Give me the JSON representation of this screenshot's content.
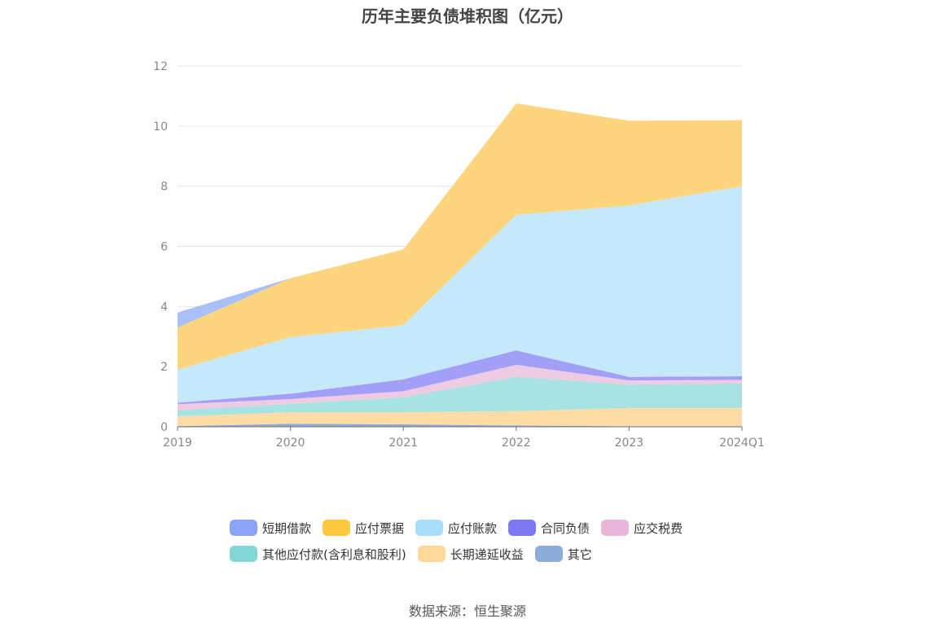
{
  "chart_data": {
    "type": "area",
    "stacked": true,
    "title": "历年主要负债堆积图（亿元）",
    "categories": [
      "2019",
      "2020",
      "2021",
      "2022",
      "2023",
      "2024Q1"
    ],
    "ylim": [
      0,
      12
    ],
    "yticks": [
      "0",
      "2",
      "4",
      "6",
      "8",
      "10",
      "12"
    ],
    "grid": true,
    "legend_position": "bottom",
    "series": [
      {
        "name": "其它",
        "color": "#8eacd8",
        "values": [
          0.02,
          0.1,
          0.08,
          0.04,
          0.02,
          0.02
        ]
      },
      {
        "name": "长期递延收益",
        "color": "#ffdca6",
        "values": [
          0.33,
          0.38,
          0.4,
          0.48,
          0.6,
          0.6
        ]
      },
      {
        "name": "其他应付款(含利息和股利)",
        "color": "#a8e3e3",
        "values": [
          0.2,
          0.28,
          0.5,
          1.14,
          0.78,
          0.82
        ]
      },
      {
        "name": "应交税费",
        "color": "#eecbe3",
        "values": [
          0.2,
          0.16,
          0.2,
          0.4,
          0.14,
          0.12
        ]
      },
      {
        "name": "合同负债",
        "color": "#a49ff6",
        "values": [
          0.05,
          0.18,
          0.4,
          0.48,
          0.12,
          0.12
        ]
      },
      {
        "name": "应付账款",
        "color": "#c5e9fa",
        "values": [
          1.1,
          1.88,
          1.8,
          4.51,
          5.7,
          6.32
        ]
      },
      {
        "name": "应付票据",
        "color": "#fdd57e",
        "values": [
          1.4,
          1.96,
          2.52,
          3.7,
          2.82,
          2.2
        ]
      },
      {
        "name": "短期借款",
        "color": "#a9bff8",
        "values": [
          0.5,
          0.0,
          0.0,
          0.0,
          0.0,
          0.0
        ]
      }
    ]
  },
  "legend": [
    {
      "label": "短期借款",
      "color": "#8aa3f5"
    },
    {
      "label": "应付票据",
      "color": "#fcc83f"
    },
    {
      "label": "应付账款",
      "color": "#a8def7"
    },
    {
      "label": "合同负债",
      "color": "#7b78f0"
    },
    {
      "label": "应交税费",
      "color": "#e8b7da"
    },
    {
      "label": "其他应付款(含利息和股利)",
      "color": "#84d6d6"
    },
    {
      "label": "长期递延收益",
      "color": "#ffd89a"
    },
    {
      "label": "其它",
      "color": "#8eacd8"
    }
  ],
  "source": "数据来源：恒生聚源"
}
